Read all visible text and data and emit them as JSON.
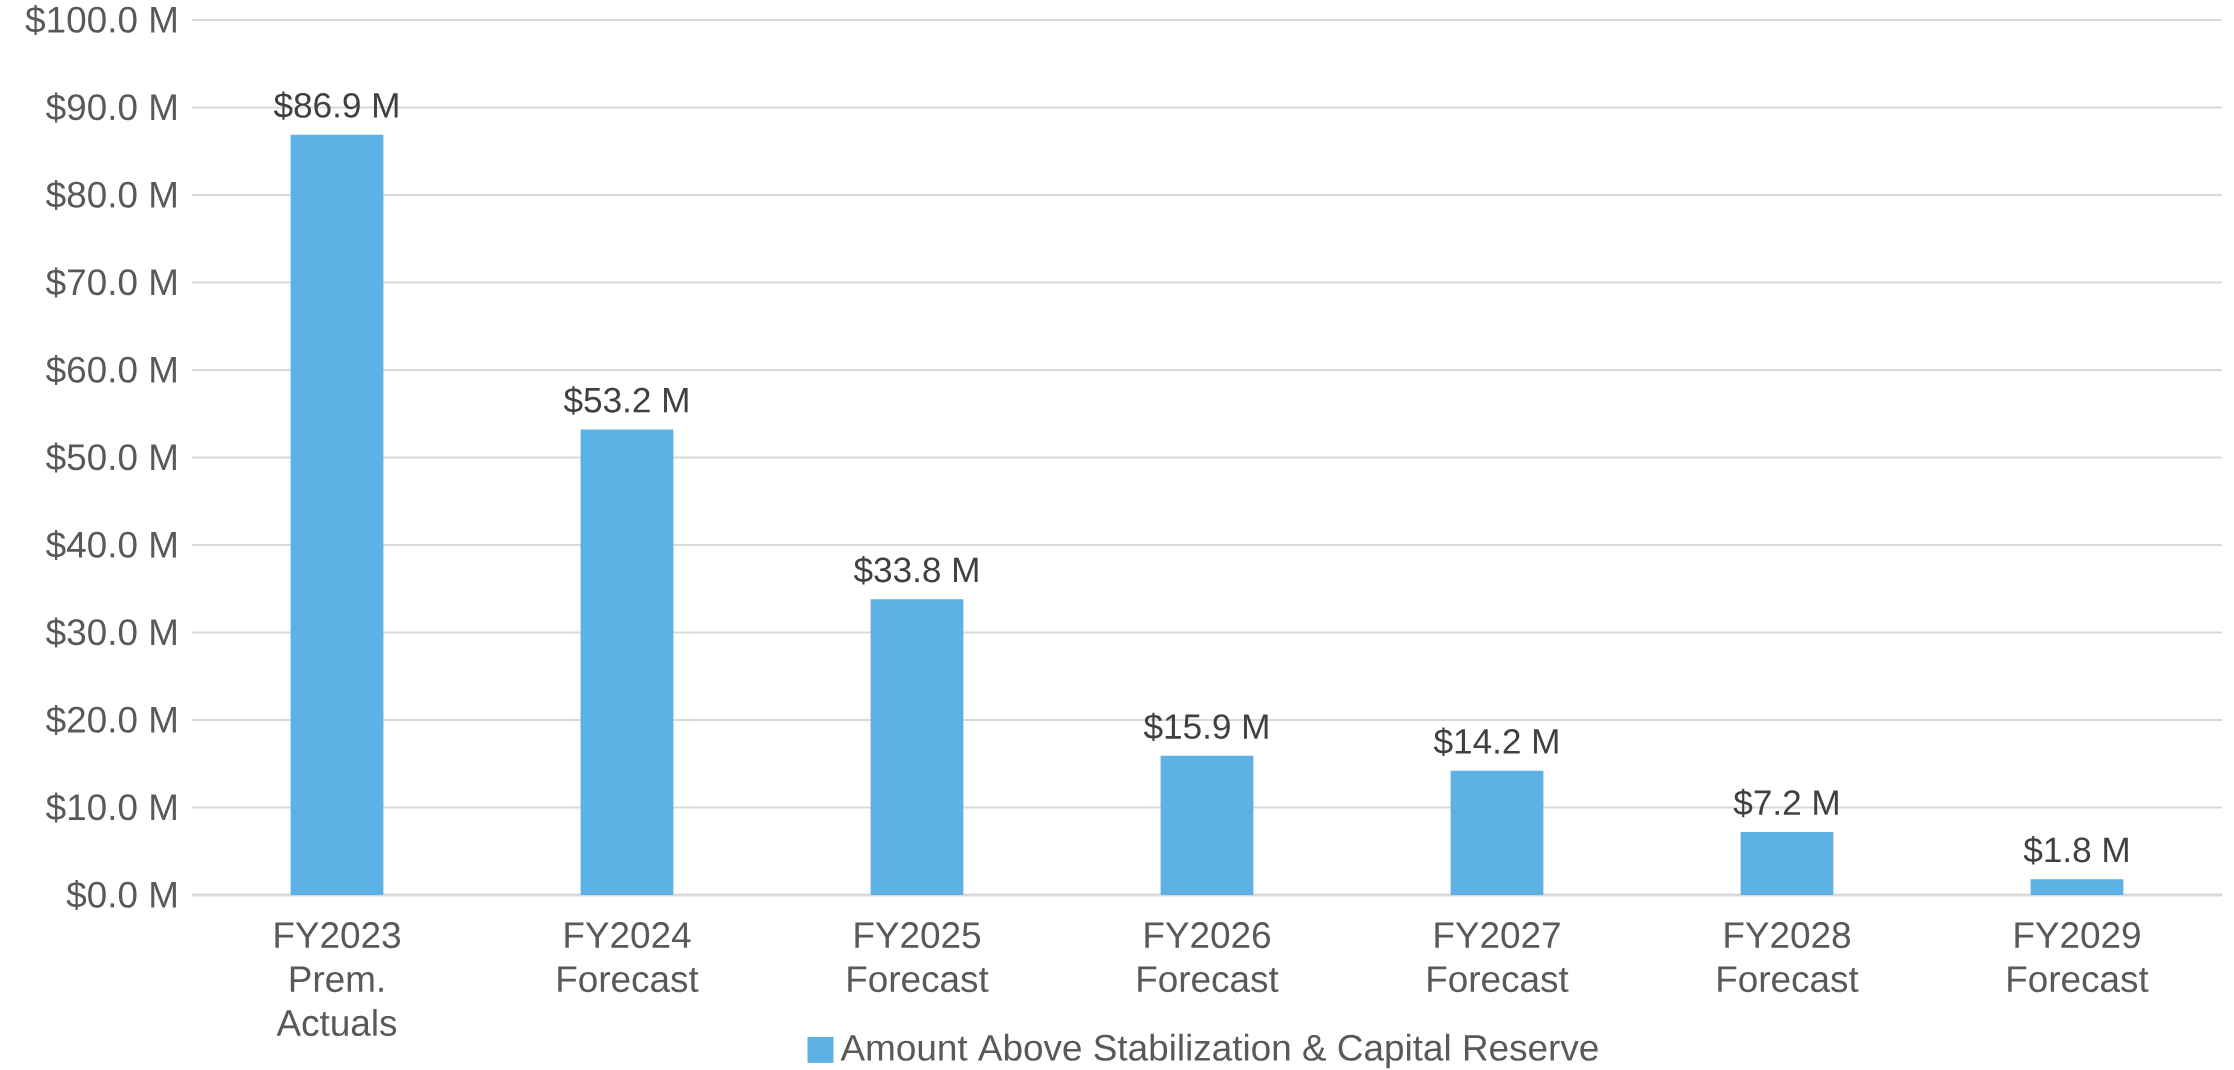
{
  "chart_data": {
    "type": "bar",
    "categories": [
      "FY2023 Prem. Actuals",
      "FY2024 Forecast",
      "FY2025 Forecast",
      "FY2026 Forecast",
      "FY2027 Forecast",
      "FY2028 Forecast",
      "FY2029 Forecast"
    ],
    "series": [
      {
        "name": "Amount Above Stabilization & Capital Reserve",
        "color": "#5db1e4",
        "values": [
          86.9,
          53.2,
          33.8,
          15.9,
          14.2,
          7.2,
          1.8
        ],
        "value_labels": [
          "$86.9 M",
          "$53.2 M",
          "$33.8 M",
          "$15.9 M",
          "$14.2 M",
          "$7.2 M",
          "$1.8 M"
        ]
      }
    ],
    "ylim": [
      0,
      100
    ],
    "yticks": [
      {
        "value": 0,
        "label": "$0.0 M"
      },
      {
        "value": 10,
        "label": "$10.0 M"
      },
      {
        "value": 20,
        "label": "$20.0 M"
      },
      {
        "value": 30,
        "label": "$30.0 M"
      },
      {
        "value": 40,
        "label": "$40.0 M"
      },
      {
        "value": 50,
        "label": "$50.0 M"
      },
      {
        "value": 60,
        "label": "$60.0 M"
      },
      {
        "value": 70,
        "label": "$70.0 M"
      },
      {
        "value": 80,
        "label": "$80.0 M"
      },
      {
        "value": 90,
        "label": "$90.0 M"
      },
      {
        "value": 100,
        "label": "$100.0 M"
      }
    ],
    "grid": "y",
    "legend": "bottom"
  }
}
